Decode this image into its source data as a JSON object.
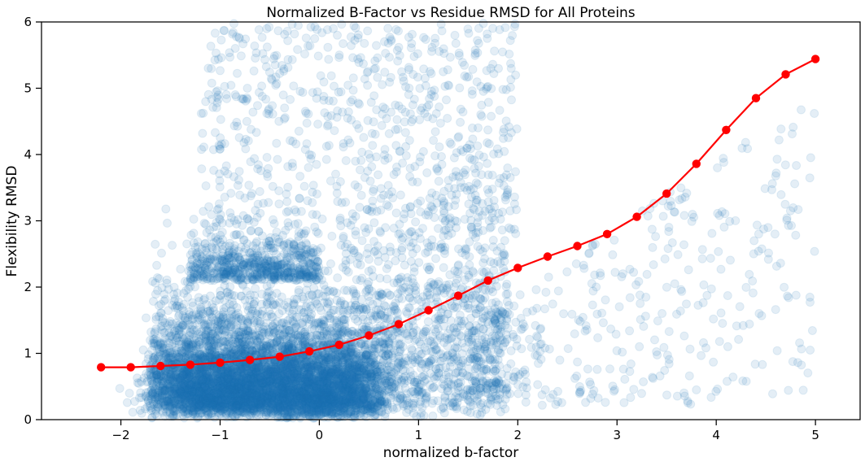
{
  "chart_data": {
    "type": "scatter",
    "title": "Normalized B-Factor vs Residue RMSD for All Proteins",
    "xlabel": "normalized b-factor",
    "ylabel": "Flexibility RMSD",
    "xlim": [
      -2.8,
      5.45
    ],
    "ylim": [
      0,
      6
    ],
    "x_ticks": [
      -2,
      -1,
      0,
      1,
      2,
      3,
      4,
      5
    ],
    "x_tick_labels": [
      "−2",
      "−1",
      "0",
      "1",
      "2",
      "3",
      "4",
      "5"
    ],
    "y_ticks": [
      0,
      1,
      2,
      3,
      4,
      5,
      6
    ],
    "y_tick_labels": [
      "0",
      "1",
      "2",
      "3",
      "4",
      "5",
      "6"
    ],
    "grid": false,
    "series": [
      {
        "kind": "scatter",
        "color": "#1f77b4",
        "alpha": 0.12,
        "point_count_estimate": 20000,
        "density_description": "dense cloud concentrated at x -1.7 to 0.8 and y 0 to 2.5; sparse points extend to x 5 and y 6"
      },
      {
        "kind": "line",
        "color": "#ff0000",
        "x": [
          -2.2,
          -1.9,
          -1.6,
          -1.3,
          -1.0,
          -0.7,
          -0.4,
          -0.1,
          0.2,
          0.5,
          0.8,
          1.1,
          1.4,
          1.7,
          2.0,
          2.3,
          2.6,
          2.9,
          3.2,
          3.5,
          3.8,
          4.1,
          4.4,
          4.7,
          5.0
        ],
        "y": [
          0.79,
          0.79,
          0.81,
          0.83,
          0.86,
          0.9,
          0.95,
          1.03,
          1.13,
          1.27,
          1.44,
          1.65,
          1.87,
          2.1,
          2.29,
          2.46,
          2.62,
          2.8,
          3.06,
          3.41,
          3.86,
          4.37,
          4.85,
          5.21,
          5.44
        ]
      }
    ]
  }
}
